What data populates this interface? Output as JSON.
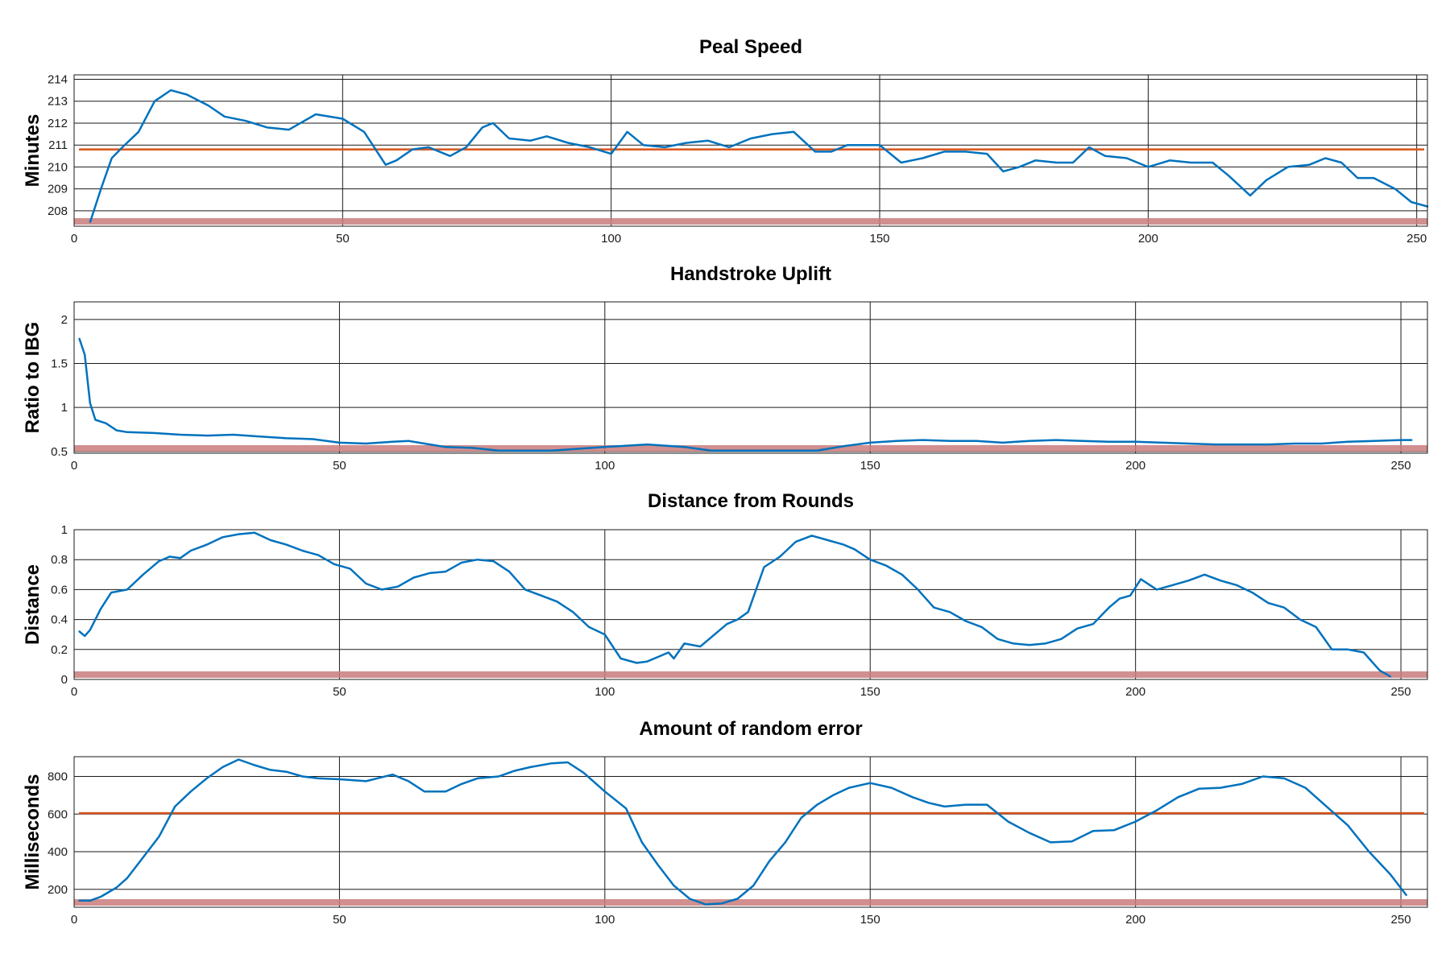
{
  "colors": {
    "series": "#0072BD",
    "reference": "#D95319",
    "baseline_band": "#C97B7B"
  },
  "chart_data": [
    {
      "type": "line",
      "title": "Peal Speed",
      "xlabel": "",
      "ylabel": "Minutes",
      "xlim": [
        0,
        252
      ],
      "ylim": [
        207.3,
        214.2
      ],
      "x_ticks": [
        0,
        50,
        100,
        150,
        200,
        250
      ],
      "y_ticks": [
        208,
        209,
        210,
        211,
        212,
        213,
        214
      ],
      "grid": true,
      "reference_line": 210.8,
      "series": [
        {
          "x": [
            3,
            5,
            7,
            9,
            12,
            15,
            18,
            21,
            25,
            28,
            32,
            36,
            40,
            45,
            50,
            54,
            58,
            60,
            63,
            66,
            70,
            73,
            76,
            78,
            81,
            85,
            88,
            92,
            96,
            100,
            103,
            106,
            110,
            114,
            118,
            122,
            126,
            130,
            134,
            138,
            141,
            144,
            147,
            150,
            154,
            158,
            162,
            166,
            170,
            173,
            176,
            179,
            183,
            186,
            189,
            192,
            196,
            200,
            204,
            208,
            212,
            215,
            219,
            222,
            226,
            230,
            233,
            236,
            239,
            242,
            246,
            249,
            252
          ],
          "y": [
            207.5,
            209.0,
            210.4,
            210.9,
            211.6,
            213.0,
            213.5,
            213.3,
            212.8,
            212.3,
            212.1,
            211.8,
            211.7,
            212.4,
            212.2,
            211.6,
            210.1,
            210.3,
            210.8,
            210.9,
            210.5,
            210.9,
            211.8,
            212.0,
            211.3,
            211.2,
            211.4,
            211.1,
            210.9,
            210.6,
            211.6,
            211.0,
            210.9,
            211.1,
            211.2,
            210.9,
            211.3,
            211.5,
            211.6,
            210.7,
            210.7,
            211.0,
            211.0,
            211.0,
            210.2,
            210.4,
            210.7,
            210.7,
            210.6,
            209.8,
            210.0,
            210.3,
            210.2,
            210.2,
            210.9,
            210.5,
            210.4,
            210.0,
            210.3,
            210.2,
            210.2,
            209.6,
            208.7,
            209.4,
            210.0,
            210.1,
            210.4,
            210.2,
            209.5,
            209.5,
            209.0,
            208.4,
            208.2
          ]
        }
      ]
    },
    {
      "type": "line",
      "title": "Handstroke Uplift",
      "xlabel": "",
      "ylabel": "Ratio to IBG",
      "xlim": [
        0,
        255
      ],
      "ylim": [
        0.48,
        2.2
      ],
      "x_ticks": [
        0,
        50,
        100,
        150,
        200,
        250
      ],
      "y_ticks": [
        0.5,
        1,
        1.5,
        2
      ],
      "grid": true,
      "series": [
        {
          "x": [
            1,
            2,
            3,
            4,
            6,
            8,
            10,
            15,
            20,
            25,
            30,
            35,
            40,
            45,
            50,
            55,
            60,
            63,
            66,
            70,
            75,
            80,
            90,
            100,
            108,
            115,
            120,
            140,
            145,
            150,
            155,
            160,
            165,
            170,
            175,
            180,
            185,
            190,
            195,
            200,
            205,
            210,
            215,
            220,
            225,
            230,
            235,
            240,
            245,
            250,
            252
          ],
          "y": [
            1.78,
            1.6,
            1.05,
            0.86,
            0.82,
            0.74,
            0.72,
            0.71,
            0.69,
            0.68,
            0.69,
            0.67,
            0.65,
            0.64,
            0.6,
            0.59,
            0.61,
            0.62,
            0.59,
            0.55,
            0.54,
            0.51,
            0.51,
            0.55,
            0.58,
            0.55,
            0.51,
            0.51,
            0.56,
            0.6,
            0.62,
            0.63,
            0.62,
            0.62,
            0.6,
            0.62,
            0.63,
            0.62,
            0.61,
            0.61,
            0.6,
            0.59,
            0.58,
            0.58,
            0.58,
            0.59,
            0.59,
            0.61,
            0.62,
            0.63,
            0.63
          ]
        }
      ]
    },
    {
      "type": "line",
      "title": "Distance from Rounds",
      "xlabel": "",
      "ylabel": "Distance",
      "xlim": [
        0,
        255
      ],
      "ylim": [
        0,
        1
      ],
      "x_ticks": [
        0,
        50,
        100,
        150,
        200,
        250
      ],
      "y_ticks": [
        0,
        0.2,
        0.4,
        0.6,
        0.8,
        1
      ],
      "grid": true,
      "series": [
        {
          "x": [
            1,
            2,
            3,
            5,
            7,
            10,
            13,
            16,
            18,
            20,
            22,
            25,
            28,
            31,
            34,
            37,
            40,
            43,
            46,
            49,
            52,
            55,
            58,
            61,
            64,
            67,
            70,
            73,
            76,
            79,
            82,
            85,
            88,
            91,
            94,
            97,
            100,
            103,
            106,
            108,
            110,
            112,
            113,
            115,
            118,
            120,
            123,
            125,
            127,
            130,
            133,
            136,
            139,
            142,
            145,
            147,
            150,
            153,
            156,
            159,
            162,
            165,
            168,
            171,
            174,
            177,
            180,
            183,
            186,
            189,
            192,
            195,
            197,
            199,
            201,
            204,
            207,
            210,
            213,
            216,
            219,
            222,
            225,
            228,
            231,
            234,
            237,
            240,
            243,
            246,
            248
          ],
          "y": [
            0.32,
            0.29,
            0.33,
            0.47,
            0.58,
            0.6,
            0.7,
            0.79,
            0.82,
            0.81,
            0.86,
            0.9,
            0.95,
            0.97,
            0.98,
            0.93,
            0.9,
            0.86,
            0.83,
            0.77,
            0.74,
            0.64,
            0.6,
            0.62,
            0.68,
            0.71,
            0.72,
            0.78,
            0.8,
            0.79,
            0.72,
            0.6,
            0.56,
            0.52,
            0.45,
            0.35,
            0.3,
            0.14,
            0.11,
            0.12,
            0.15,
            0.18,
            0.14,
            0.24,
            0.22,
            0.28,
            0.37,
            0.4,
            0.45,
            0.75,
            0.82,
            0.92,
            0.96,
            0.93,
            0.9,
            0.87,
            0.8,
            0.76,
            0.7,
            0.6,
            0.48,
            0.45,
            0.39,
            0.35,
            0.27,
            0.24,
            0.23,
            0.24,
            0.27,
            0.34,
            0.37,
            0.48,
            0.54,
            0.56,
            0.67,
            0.6,
            0.63,
            0.66,
            0.7,
            0.66,
            0.63,
            0.58,
            0.51,
            0.48,
            0.4,
            0.35,
            0.2,
            0.2,
            0.18,
            0.06,
            0.02
          ]
        }
      ]
    },
    {
      "type": "line",
      "title": "Amount of random error",
      "xlabel": "",
      "ylabel": "Milliseconds",
      "xlim": [
        0,
        255
      ],
      "ylim": [
        105,
        905
      ],
      "x_ticks": [
        0,
        50,
        100,
        150,
        200,
        250
      ],
      "y_ticks": [
        200,
        400,
        600,
        800
      ],
      "grid": true,
      "reference_line": 605,
      "series": [
        {
          "x": [
            1,
            3,
            5,
            8,
            10,
            13,
            16,
            19,
            22,
            25,
            28,
            31,
            34,
            37,
            40,
            43,
            46,
            50,
            55,
            60,
            63,
            66,
            70,
            73,
            76,
            80,
            83,
            86,
            90,
            93,
            96,
            100,
            104,
            107,
            110,
            113,
            116,
            119,
            122,
            125,
            128,
            131,
            134,
            137,
            140,
            143,
            146,
            150,
            154,
            158,
            161,
            164,
            168,
            172,
            176,
            180,
            184,
            188,
            192,
            196,
            200,
            204,
            208,
            212,
            216,
            220,
            224,
            228,
            232,
            236,
            240,
            244,
            248,
            251
          ],
          "y": [
            140,
            140,
            160,
            210,
            260,
            370,
            480,
            640,
            720,
            790,
            850,
            890,
            860,
            835,
            825,
            800,
            790,
            785,
            775,
            810,
            775,
            720,
            720,
            760,
            790,
            800,
            830,
            850,
            870,
            875,
            820,
            720,
            630,
            450,
            330,
            220,
            150,
            120,
            125,
            150,
            220,
            350,
            450,
            580,
            650,
            700,
            740,
            765,
            740,
            690,
            660,
            640,
            650,
            650,
            560,
            500,
            450,
            455,
            510,
            515,
            560,
            620,
            690,
            735,
            740,
            760,
            800,
            790,
            740,
            640,
            540,
            400,
            280,
            170
          ]
        }
      ]
    }
  ]
}
